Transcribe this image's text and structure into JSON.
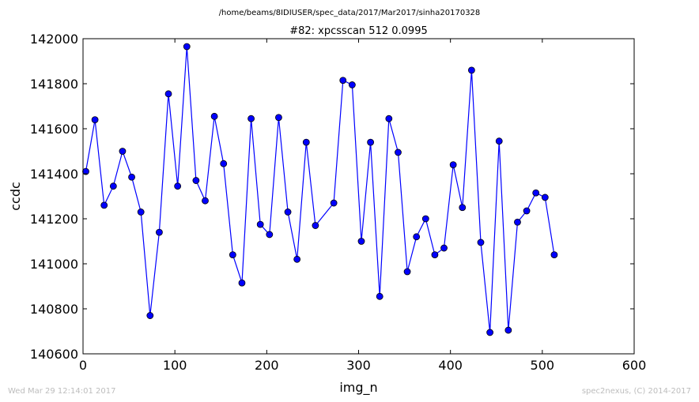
{
  "header": {
    "path": "/home/beams/8IDIUSER/spec_data/2017/Mar2017/sinha20170328"
  },
  "footer": {
    "timestamp": "Wed Mar 29 12:14:01 2017",
    "credit": "spec2nexus, (C) 2014-2017"
  },
  "colors": {
    "line": "#0000ff",
    "marker_fill": "#0000ff",
    "marker_edge": "#000000",
    "axes": "#000000",
    "footer_text": "#bdbdbd"
  },
  "chart_data": {
    "type": "line",
    "title": "#82: xpcsscan 512 0.0995",
    "xlabel": "img_n",
    "ylabel": "ccdc",
    "xlim": [
      0,
      600
    ],
    "ylim": [
      140600,
      142000
    ],
    "xticks": [
      "0",
      "100",
      "200",
      "300",
      "400",
      "500",
      "600"
    ],
    "yticks": [
      "140600",
      "140800",
      "141000",
      "141200",
      "141400",
      "141600",
      "141800",
      "142000"
    ],
    "grid": false,
    "legend": "none",
    "series": [
      {
        "x": [
          3,
          13,
          23,
          33,
          43,
          53,
          63,
          73,
          83,
          93,
          103,
          113,
          123,
          133,
          143,
          153,
          163,
          173,
          183,
          193,
          203,
          213,
          223,
          233,
          243,
          253,
          273,
          283,
          293,
          303,
          313,
          323,
          333,
          343,
          353,
          363,
          373,
          383,
          393,
          403,
          413,
          423,
          433,
          443,
          453,
          463,
          473,
          483,
          493,
          503,
          513
        ],
        "values": [
          141410,
          141640,
          141260,
          141345,
          141500,
          141385,
          141230,
          140770,
          141140,
          141755,
          141345,
          141965,
          141370,
          141280,
          141655,
          141445,
          141040,
          140915,
          141645,
          141175,
          141130,
          141650,
          141230,
          141020,
          141540,
          141170,
          141270,
          141815,
          141795,
          141100,
          141540,
          140855,
          141645,
          141495,
          140965,
          141120,
          141200,
          141040,
          141070,
          141440,
          141250,
          141860,
          141095,
          140695,
          141545,
          140705,
          141185,
          141235,
          141315,
          141295,
          141040
        ]
      }
    ]
  }
}
